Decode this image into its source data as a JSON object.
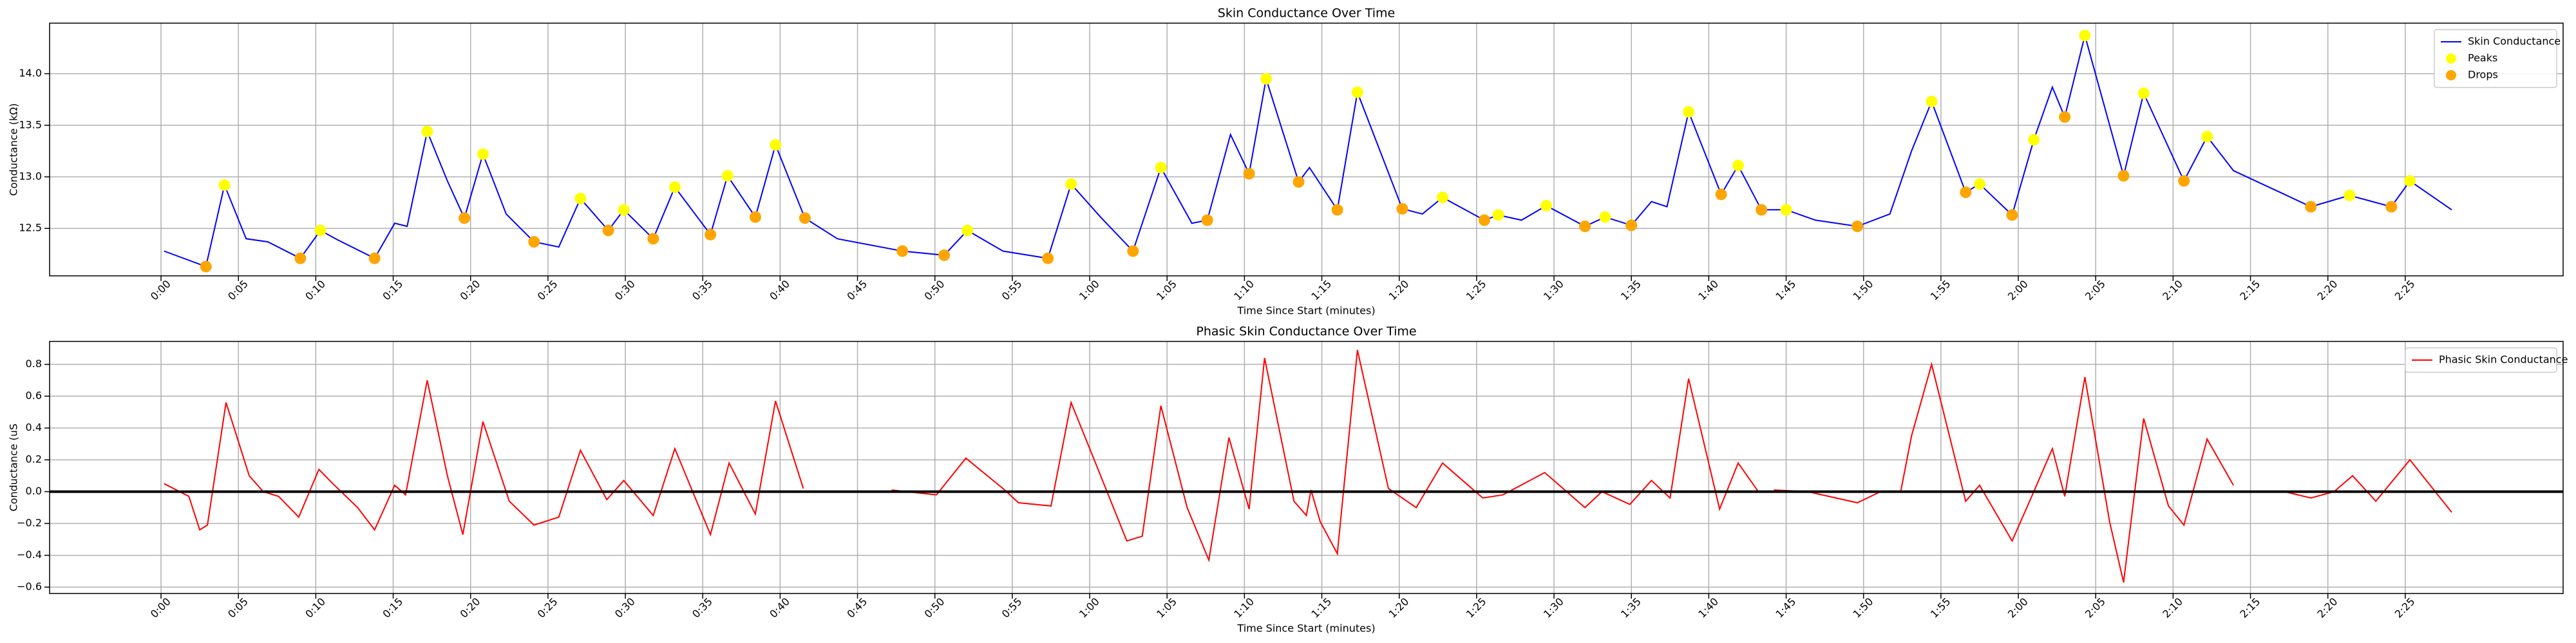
{
  "chart_data": [
    {
      "type": "line",
      "title": "Skin Conductance Over Time",
      "xlabel": "Time Since Start (minutes)",
      "ylabel": "Conductance (kΩ)",
      "xlim": [
        -7.2,
        155.2
      ],
      "ylim": [
        12.04,
        14.49
      ],
      "xticks": [
        {
          "value": 0,
          "label": "0:00"
        },
        {
          "value": 5,
          "label": "0:05"
        },
        {
          "value": 10,
          "label": "0:10"
        },
        {
          "value": 15,
          "label": "0:15"
        },
        {
          "value": 20,
          "label": "0:20"
        },
        {
          "value": 25,
          "label": "0:25"
        },
        {
          "value": 30,
          "label": "0:30"
        },
        {
          "value": 35,
          "label": "0:35"
        },
        {
          "value": 40,
          "label": "0:40"
        },
        {
          "value": 45,
          "label": "0:45"
        },
        {
          "value": 50,
          "label": "0:50"
        },
        {
          "value": 55,
          "label": "0:55"
        },
        {
          "value": 60,
          "label": "1:00"
        },
        {
          "value": 65,
          "label": "1:05"
        },
        {
          "value": 70,
          "label": "1:10"
        },
        {
          "value": 75,
          "label": "1:15"
        },
        {
          "value": 80,
          "label": "1:20"
        },
        {
          "value": 85,
          "label": "1:25"
        },
        {
          "value": 90,
          "label": "1:30"
        },
        {
          "value": 95,
          "label": "1:35"
        },
        {
          "value": 100,
          "label": "1:40"
        },
        {
          "value": 105,
          "label": "1:45"
        },
        {
          "value": 110,
          "label": "1:50"
        },
        {
          "value": 115,
          "label": "1:55"
        },
        {
          "value": 120,
          "label": "2:00"
        },
        {
          "value": 125,
          "label": "2:05"
        },
        {
          "value": 130,
          "label": "2:10"
        },
        {
          "value": 135,
          "label": "2:15"
        },
        {
          "value": 140,
          "label": "2:20"
        },
        {
          "value": 145,
          "label": "2:25"
        }
      ],
      "yticks": [
        12.5,
        {
          "value": 13,
          "label": "13.0"
        },
        13.5,
        {
          "value": 14,
          "label": "14.0"
        }
      ],
      "grid": true,
      "legend": "upper right",
      "series": [
        {
          "name": "Skin Conductance",
          "type": "line",
          "color": "#0000ff",
          "x": [
            0.2,
            2.9,
            4.1,
            5.5,
            6.9,
            9.0,
            10.3,
            11.4,
            13.8,
            15.1,
            15.9,
            17.2,
            18.5,
            19.6,
            20.8,
            22.3,
            24.1,
            25.7,
            27.1,
            28.9,
            29.9,
            31.8,
            33.2,
            35.5,
            36.6,
            38.4,
            39.7,
            41.6,
            43.7,
            47.9,
            50.6,
            52.1,
            54.4,
            57.3,
            58.8,
            60.7,
            62.8,
            64.6,
            66.6,
            67.6,
            69.1,
            70.3,
            71.4,
            73.5,
            74.2,
            76.0,
            77.3,
            80.2,
            81.5,
            82.8,
            85.5,
            86.4,
            87.9,
            89.5,
            92.0,
            93.3,
            95.0,
            96.3,
            97.3,
            98.7,
            100.8,
            101.9,
            103.4,
            105.0,
            106.9,
            109.6,
            111.7,
            113.1,
            114.4,
            116.6,
            117.5,
            119.6,
            121.0,
            122.2,
            123.0,
            124.3,
            126.8,
            128.1,
            130.7,
            132.2,
            133.9,
            137.2,
            138.9,
            141.4,
            144.1,
            145.3,
            148.0
          ],
          "values": [
            12.28,
            12.13,
            12.92,
            12.4,
            12.37,
            12.21,
            12.48,
            12.39,
            12.21,
            12.55,
            12.52,
            13.44,
            12.96,
            12.6,
            13.22,
            12.64,
            12.37,
            12.32,
            12.79,
            12.48,
            12.68,
            12.4,
            12.9,
            12.44,
            13.01,
            12.61,
            13.31,
            12.6,
            12.4,
            12.28,
            12.24,
            12.48,
            12.28,
            12.21,
            12.93,
            12.61,
            12.28,
            13.09,
            12.55,
            12.58,
            13.41,
            13.03,
            13.95,
            12.95,
            13.09,
            12.68,
            13.82,
            12.69,
            12.64,
            12.8,
            12.58,
            12.63,
            12.58,
            12.72,
            12.52,
            12.61,
            12.53,
            12.76,
            12.71,
            13.63,
            12.83,
            13.11,
            12.68,
            12.68,
            12.58,
            12.52,
            12.64,
            13.25,
            13.73,
            12.85,
            12.93,
            12.63,
            13.36,
            13.87,
            13.58,
            14.37,
            13.01,
            13.81,
            12.96,
            13.39,
            13.06,
            12.83,
            12.71,
            12.82,
            12.71,
            12.96,
            12.68
          ]
        },
        {
          "name": "Peaks",
          "type": "scatter",
          "color": "#ffff00",
          "x": [
            4.1,
            10.3,
            17.2,
            20.8,
            27.1,
            29.9,
            33.2,
            36.6,
            39.7,
            52.1,
            58.8,
            64.6,
            71.4,
            77.3,
            82.8,
            86.4,
            89.5,
            93.3,
            98.7,
            101.9,
            105.0,
            114.4,
            117.5,
            121.0,
            124.3,
            128.1,
            132.2,
            141.4,
            145.3
          ],
          "values": [
            12.92,
            12.48,
            13.44,
            13.22,
            12.79,
            12.68,
            12.9,
            13.01,
            13.31,
            12.48,
            12.93,
            13.09,
            13.95,
            13.82,
            12.8,
            12.63,
            12.72,
            12.61,
            13.63,
            13.11,
            12.68,
            13.73,
            12.93,
            13.36,
            14.37,
            13.81,
            13.39,
            12.82,
            12.96
          ]
        },
        {
          "name": "Drops",
          "type": "scatter",
          "color": "#ffa500",
          "x": [
            2.9,
            9.0,
            13.8,
            19.6,
            24.1,
            28.9,
            31.8,
            35.5,
            38.4,
            41.6,
            47.9,
            50.6,
            57.3,
            62.8,
            67.6,
            70.3,
            73.5,
            76.0,
            80.2,
            85.5,
            92.0,
            95.0,
            100.8,
            103.4,
            109.6,
            116.6,
            119.6,
            123.0,
            126.8,
            130.7,
            138.9,
            144.1
          ],
          "values": [
            12.13,
            12.21,
            12.21,
            12.6,
            12.37,
            12.48,
            12.4,
            12.44,
            12.61,
            12.6,
            12.28,
            12.24,
            12.21,
            12.28,
            12.58,
            13.03,
            12.95,
            12.68,
            12.69,
            12.58,
            12.52,
            12.53,
            12.83,
            12.68,
            12.52,
            12.85,
            12.63,
            13.58,
            13.01,
            12.96,
            12.71,
            12.71
          ]
        }
      ]
    },
    {
      "type": "line",
      "title": "Phasic Skin Conductance Over Time",
      "xlabel": "Time Since Start (minutes)",
      "ylabel": "Conductance (uS",
      "xlim": [
        -7.2,
        155.2
      ],
      "ylim": [
        -0.64,
        0.944
      ],
      "xticks": [
        {
          "value": 0,
          "label": "0:00"
        },
        {
          "value": 5,
          "label": "0:05"
        },
        {
          "value": 10,
          "label": "0:10"
        },
        {
          "value": 15,
          "label": "0:15"
        },
        {
          "value": 20,
          "label": "0:20"
        },
        {
          "value": 25,
          "label": "0:25"
        },
        {
          "value": 30,
          "label": "0:30"
        },
        {
          "value": 35,
          "label": "0:35"
        },
        {
          "value": 40,
          "label": "0:40"
        },
        {
          "value": 45,
          "label": "0:45"
        },
        {
          "value": 50,
          "label": "0:50"
        },
        {
          "value": 55,
          "label": "0:55"
        },
        {
          "value": 60,
          "label": "1:00"
        },
        {
          "value": 65,
          "label": "1:05"
        },
        {
          "value": 70,
          "label": "1:10"
        },
        {
          "value": 75,
          "label": "1:15"
        },
        {
          "value": 80,
          "label": "1:20"
        },
        {
          "value": 85,
          "label": "1:25"
        },
        {
          "value": 90,
          "label": "1:30"
        },
        {
          "value": 95,
          "label": "1:35"
        },
        {
          "value": 100,
          "label": "1:40"
        },
        {
          "value": 105,
          "label": "1:45"
        },
        {
          "value": 110,
          "label": "1:50"
        },
        {
          "value": 115,
          "label": "1:55"
        },
        {
          "value": 120,
          "label": "2:00"
        },
        {
          "value": 125,
          "label": "2:05"
        },
        {
          "value": 130,
          "label": "2:10"
        },
        {
          "value": 135,
          "label": "2:15"
        },
        {
          "value": 140,
          "label": "2:20"
        },
        {
          "value": 145,
          "label": "2:25"
        }
      ],
      "yticks": [
        {
          "value": -0.6,
          "label": "−0.6"
        },
        {
          "value": -0.4,
          "label": "−0.4"
        },
        {
          "value": -0.2,
          "label": "−0.2"
        },
        {
          "value": 0,
          "label": "0.0"
        },
        0.2,
        0.4,
        0.6,
        0.8
      ],
      "grid": true,
      "legend": "upper right",
      "hline": 0,
      "series": [
        {
          "name": "Phasic Skin Conductance",
          "type": "line",
          "color": "#ff0000",
          "x": [
            0.2,
            1.8,
            2.5,
            3.0,
            4.2,
            5.7,
            6.6,
            7.6,
            8.9,
            10.2,
            11.1,
            12.7,
            13.8,
            15.1,
            15.8,
            17.2,
            18.5,
            19.5,
            20.8,
            22.5,
            24.1,
            25.7,
            27.1,
            28.8,
            29.9,
            31.8,
            33.2,
            35.5,
            36.7,
            38.4,
            39.7,
            41.5,
            null,
            47.2,
            50.1,
            52.0,
            54.4,
            55.4,
            57.5,
            58.8,
            60.5,
            62.4,
            63.4,
            64.6,
            66.3,
            67.7,
            69.0,
            70.3,
            71.3,
            73.2,
            74.0,
            74.3,
            74.9,
            76.0,
            77.3,
            79.3,
            81.1,
            82.8,
            85.4,
            86.7,
            89.4,
            92.0,
            93.1,
            94.9,
            96.3,
            97.5,
            98.7,
            100.7,
            101.9,
            103.2,
            null,
            104.2,
            106.4,
            109.6,
            111.1,
            null,
            112.4,
            113.1,
            114.4,
            116.6,
            117.5,
            119.6,
            121.0,
            122.2,
            123.0,
            124.3,
            125.9,
            126.8,
            128.1,
            129.7,
            130.7,
            132.2,
            133.9,
            null,
            137.2,
            138.9,
            140.4,
            141.6,
            143.1,
            145.3,
            148.0
          ],
          "values": [
            0.05,
            -0.03,
            -0.24,
            -0.21,
            0.56,
            0.1,
            0.0,
            -0.03,
            -0.16,
            0.14,
            0.05,
            -0.1,
            -0.24,
            0.04,
            -0.02,
            0.7,
            0.1,
            -0.27,
            0.44,
            -0.06,
            -0.21,
            -0.16,
            0.26,
            -0.05,
            0.07,
            -0.15,
            0.27,
            -0.27,
            0.18,
            -0.14,
            0.57,
            0.02,
            null,
            0.01,
            -0.02,
            0.21,
            0.02,
            -0.07,
            -0.09,
            0.56,
            0.15,
            -0.31,
            -0.28,
            0.54,
            -0.1,
            -0.43,
            0.34,
            -0.11,
            0.84,
            -0.06,
            -0.15,
            0.01,
            -0.19,
            -0.39,
            0.89,
            0.02,
            -0.1,
            0.18,
            -0.04,
            -0.02,
            0.12,
            -0.1,
            0.0,
            -0.08,
            0.07,
            -0.04,
            0.71,
            -0.11,
            0.18,
            0.0,
            null,
            0.01,
            0.0,
            -0.07,
            0.0,
            null,
            0.0,
            0.35,
            0.8,
            -0.06,
            0.04,
            -0.31,
            0.0,
            0.27,
            -0.03,
            0.72,
            -0.19,
            -0.57,
            0.46,
            -0.09,
            -0.21,
            0.33,
            0.04,
            null,
            0.0,
            -0.04,
            0.0,
            0.1,
            -0.06,
            0.2,
            -0.13
          ]
        }
      ]
    }
  ]
}
